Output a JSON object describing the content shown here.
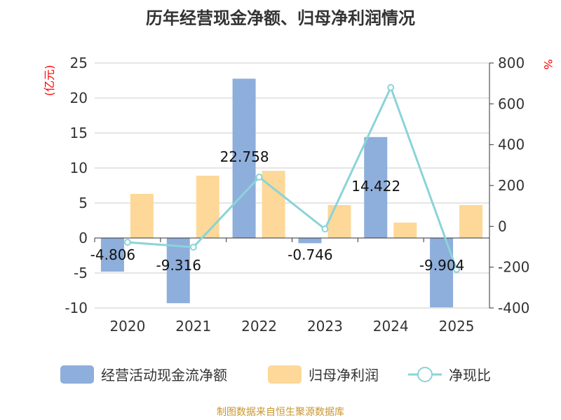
{
  "chart_data": {
    "type": "bar",
    "title": "历年经营现金净额、归母净利润情况",
    "categories": [
      "2020",
      "2021",
      "2022",
      "2023",
      "2024",
      "2025"
    ],
    "y_left": {
      "label": "(亿元)",
      "range": [
        -10,
        25
      ],
      "ticks": [
        -10,
        -5,
        0,
        5,
        10,
        15,
        20,
        25
      ]
    },
    "y_right": {
      "label": "%",
      "range": [
        -400,
        800
      ],
      "ticks": [
        -400,
        -200,
        0,
        200,
        400,
        600,
        800
      ]
    },
    "grid": true,
    "legend_placement": "bottom",
    "series": [
      {
        "name": "经营活动现金流净额",
        "type": "bar",
        "axis": "left",
        "color": "#8eaedb",
        "values": [
          -4.806,
          -9.316,
          22.758,
          -0.746,
          14.422,
          -9.904
        ],
        "labels": [
          "-4.806",
          "-9.316",
          "22.758",
          "-0.746",
          "14.422",
          "-9.904"
        ]
      },
      {
        "name": "归母净利润",
        "type": "bar",
        "axis": "left",
        "color": "#fdd898",
        "values": [
          6.3,
          8.9,
          9.6,
          4.7,
          2.2,
          4.7
        ]
      },
      {
        "name": "净现比",
        "type": "line",
        "axis": "right",
        "color": "#8ad4d8",
        "values": [
          -78,
          -102,
          241,
          -13,
          680,
          -211
        ]
      }
    ]
  },
  "source": "制图数据来自恒生聚源数据库"
}
